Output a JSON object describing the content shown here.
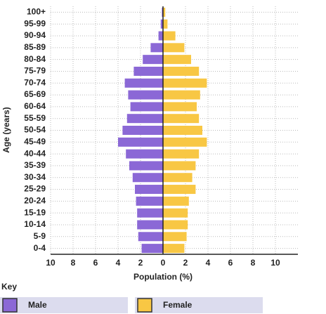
{
  "chart_data": {
    "type": "pyramid",
    "x_label": "Population (%)",
    "y_label": "Age (years)",
    "legend_title": "Key",
    "categories": [
      "100+",
      "95-99",
      "90-94",
      "85-89",
      "80-84",
      "75-79",
      "70-74",
      "65-69",
      "60-64",
      "55-59",
      "50-54",
      "45-49",
      "40-44",
      "35-39",
      "30-34",
      "25-29",
      "20-24",
      "15-19",
      "10-14",
      "5-9",
      "0-4"
    ],
    "series": [
      {
        "name": "Male",
        "color": "#8b68d6",
        "values": [
          -0.1,
          -0.2,
          -0.4,
          -1.1,
          -1.8,
          -2.6,
          -3.4,
          -3.1,
          -2.9,
          -3.2,
          -3.6,
          -4.0,
          -3.3,
          -3.0,
          -2.7,
          -2.5,
          -2.4,
          -2.3,
          -2.3,
          -2.2,
          -1.9
        ]
      },
      {
        "name": "Female",
        "color": "#f8c744",
        "values": [
          0.2,
          0.4,
          1.1,
          1.9,
          2.5,
          3.2,
          3.9,
          3.3,
          3.0,
          3.2,
          3.5,
          3.9,
          3.2,
          2.9,
          2.6,
          2.9,
          2.3,
          2.2,
          2.2,
          2.1,
          1.9
        ]
      }
    ],
    "xlim": [
      -10,
      12
    ],
    "xticks": [
      {
        "value": -10,
        "label": "10"
      },
      {
        "value": -8,
        "label": "8"
      },
      {
        "value": -6,
        "label": "6"
      },
      {
        "value": -4,
        "label": "4"
      },
      {
        "value": -2,
        "label": "2"
      },
      0,
      2,
      4,
      6,
      8,
      10
    ],
    "grid": true
  }
}
